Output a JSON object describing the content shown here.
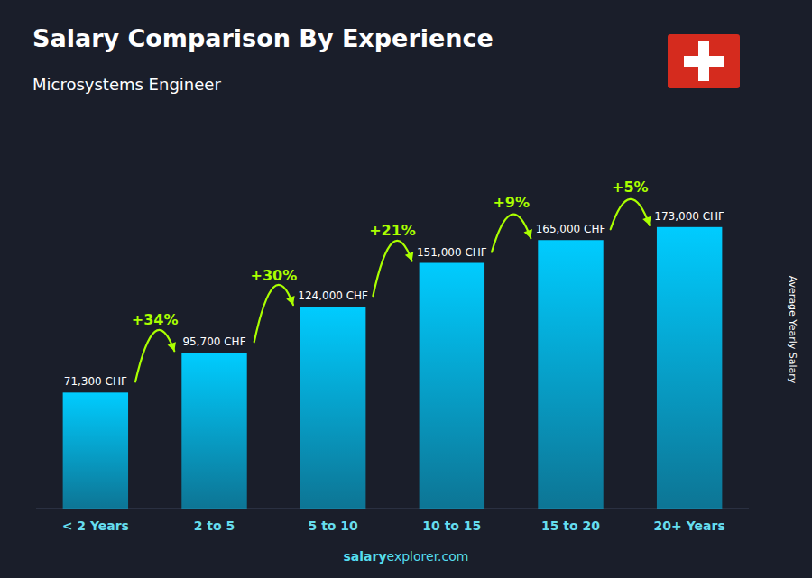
{
  "chart_data": {
    "type": "bar",
    "title": "Salary Comparison By Experience",
    "subtitle": "Microsystems Engineer",
    "ylabel": "Average Yearly Salary",
    "categories": [
      "< 2 Years",
      "2 to 5",
      "5 to 10",
      "10 to 15",
      "15 to 20",
      "20+ Years"
    ],
    "values": [
      71300,
      95700,
      124000,
      151000,
      165000,
      173000
    ],
    "value_labels": [
      "71,300 CHF",
      "95,700 CHF",
      "124,000 CHF",
      "151,000 CHF",
      "165,000 CHF",
      "173,000 CHF"
    ],
    "data_labels": true,
    "color": "#00ccff",
    "ylim": [
      0,
      220000
    ],
    "grid": false,
    "tick_labels": "x",
    "annotations": [
      {
        "text": "+34%",
        "from": "< 2 Years",
        "to": "2 to 5",
        "color": "#aaff00"
      },
      {
        "text": "+30%",
        "from": "2 to 5",
        "to": "5 to 10",
        "color": "#aaff00"
      },
      {
        "text": "+21%",
        "from": "5 to 10",
        "to": "10 to 15",
        "color": "#aaff00"
      },
      {
        "text": "+9%",
        "from": "10 to 15",
        "to": "15 to 20",
        "color": "#aaff00"
      },
      {
        "text": "+5%",
        "from": "15 to 20",
        "to": "20+ Years",
        "color": "#aaff00"
      }
    ],
    "watermark": [
      "salary",
      "explorer.com"
    ]
  }
}
